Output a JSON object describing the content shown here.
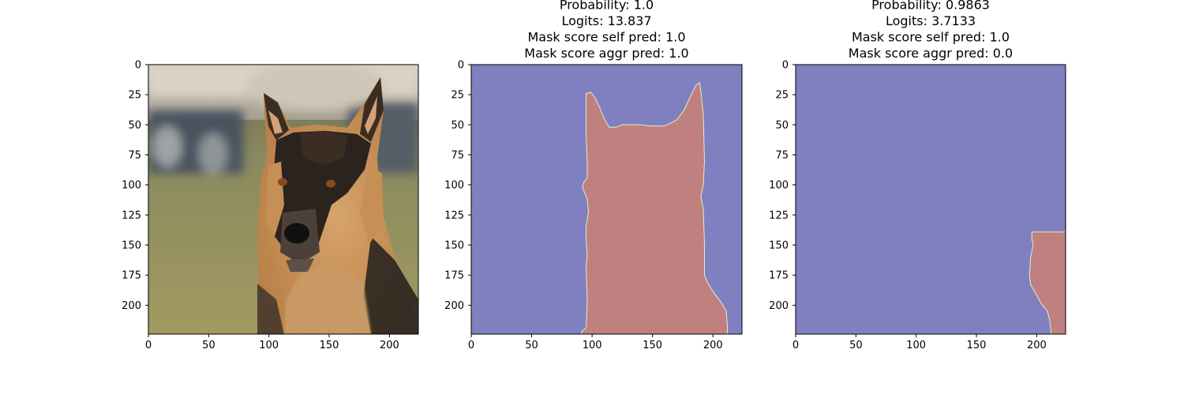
{
  "colors": {
    "background_class": "#8080c0",
    "foreground_class": "#c08080",
    "boundary": "#dff0c0",
    "fur_tan": "#c8935a",
    "fur_dark": "#2a2520"
  },
  "chart_data": [
    {
      "type": "image",
      "title_lines": [],
      "xlim": [
        0,
        224
      ],
      "ylim": [
        224,
        0
      ],
      "xticks": [
        "0",
        "50",
        "100",
        "150",
        "200"
      ],
      "yticks": [
        "0",
        "25",
        "50",
        "75",
        "100",
        "125",
        "150",
        "175",
        "200"
      ],
      "content": "photograph"
    },
    {
      "type": "image",
      "title_lines": [
        "Probability: 1.0",
        "Logits: 13.837",
        "Mask score self pred: 1.0",
        "Mask score aggr pred: 1.0"
      ],
      "xlim": [
        0,
        224
      ],
      "ylim": [
        224,
        0
      ],
      "xticks": [
        "0",
        "50",
        "100",
        "150",
        "200"
      ],
      "yticks": [
        "0",
        "25",
        "50",
        "75",
        "100",
        "125",
        "150",
        "175",
        "200"
      ],
      "content": "segmentation_mask",
      "mask_polygon": [
        [
          91,
          224
        ],
        [
          92,
          221
        ],
        [
          95,
          219
        ],
        [
          96,
          198
        ],
        [
          95,
          168
        ],
        [
          96,
          158
        ],
        [
          95,
          145
        ],
        [
          95,
          135
        ],
        [
          97,
          122
        ],
        [
          96,
          112
        ],
        [
          92,
          102
        ],
        [
          93,
          98
        ],
        [
          96,
          94
        ],
        [
          96,
          80
        ],
        [
          95,
          60
        ],
        [
          95,
          24
        ],
        [
          99,
          23
        ],
        [
          102,
          27
        ],
        [
          106,
          35
        ],
        [
          110,
          45
        ],
        [
          114,
          52
        ],
        [
          120,
          52
        ],
        [
          125,
          50
        ],
        [
          130,
          50
        ],
        [
          140,
          50
        ],
        [
          148,
          51
        ],
        [
          160,
          51
        ],
        [
          170,
          46
        ],
        [
          176,
          38
        ],
        [
          182,
          25
        ],
        [
          186,
          17
        ],
        [
          189,
          15
        ],
        [
          190,
          22
        ],
        [
          192,
          42
        ],
        [
          193,
          80
        ],
        [
          192,
          100
        ],
        [
          190,
          110
        ],
        [
          192,
          120
        ],
        [
          193,
          150
        ],
        [
          193,
          175
        ],
        [
          196,
          182
        ],
        [
          201,
          190
        ],
        [
          207,
          198
        ],
        [
          211,
          205
        ],
        [
          212,
          218
        ],
        [
          212,
          224
        ]
      ]
    },
    {
      "type": "image",
      "title_lines": [
        "Probability: 0.9863",
        "Logits: 3.7133",
        "Mask score self pred: 1.0",
        "Mask score aggr pred: 0.0"
      ],
      "xlim": [
        0,
        224
      ],
      "ylim": [
        224,
        0
      ],
      "xticks": [
        "0",
        "50",
        "100",
        "150",
        "200"
      ],
      "yticks": [
        "0",
        "25",
        "50",
        "75",
        "100",
        "125",
        "150",
        "175",
        "200"
      ],
      "content": "segmentation_mask",
      "mask_polygon": [
        [
          196,
          139
        ],
        [
          224,
          139
        ],
        [
          224,
          224
        ],
        [
          212,
          224
        ],
        [
          211,
          214
        ],
        [
          209,
          205
        ],
        [
          204,
          199
        ],
        [
          199,
          190
        ],
        [
          195,
          183
        ],
        [
          194,
          175
        ],
        [
          195,
          160
        ],
        [
          196,
          155
        ],
        [
          197,
          150
        ],
        [
          196,
          145
        ]
      ]
    }
  ]
}
